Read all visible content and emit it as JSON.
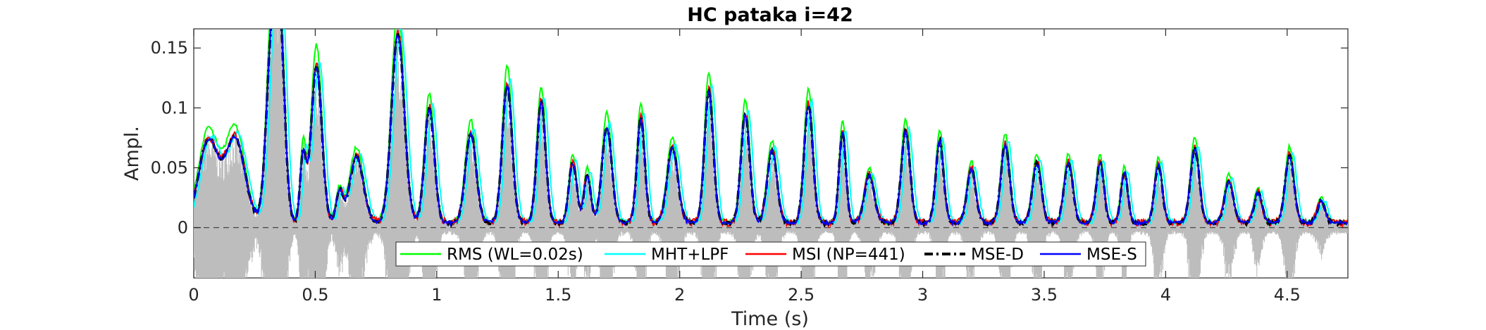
{
  "chart_data": {
    "type": "line",
    "title": "HC pataka i=42",
    "xlabel": "Time (s)",
    "ylabel": "Ampl.",
    "xlim": [
      0,
      4.75
    ],
    "ylim": [
      -0.042,
      0.166
    ],
    "xticks": [
      0,
      0.5,
      1,
      1.5,
      2,
      2.5,
      3,
      3.5,
      4,
      4.5
    ],
    "xtick_labels": [
      "0",
      "0.5",
      "1",
      "1.5",
      "2",
      "2.5",
      "3",
      "3.5",
      "4",
      "4.5"
    ],
    "yticks": [
      0,
      0.05,
      0.1,
      0.15
    ],
    "ytick_labels": [
      "0",
      "0.05",
      "0.1",
      "0.15"
    ],
    "grid": false,
    "zero_line": "dashed",
    "legend_position": "bottom-center",
    "background_signal_color": "#bdbdbd",
    "peaks": [
      [
        0.06,
        0.068,
        0.04
      ],
      [
        0.17,
        0.07,
        0.04
      ],
      [
        0.32,
        0.14,
        0.022
      ],
      [
        0.355,
        0.145,
        0.02
      ],
      [
        0.45,
        0.056,
        0.012
      ],
      [
        0.505,
        0.13,
        0.022
      ],
      [
        0.6,
        0.025,
        0.014
      ],
      [
        0.67,
        0.055,
        0.028
      ],
      [
        0.84,
        0.157,
        0.026
      ],
      [
        0.97,
        0.095,
        0.02
      ],
      [
        1.14,
        0.075,
        0.022
      ],
      [
        1.29,
        0.115,
        0.02
      ],
      [
        1.43,
        0.1,
        0.018
      ],
      [
        1.56,
        0.05,
        0.016
      ],
      [
        1.62,
        0.04,
        0.014
      ],
      [
        1.7,
        0.08,
        0.02
      ],
      [
        1.84,
        0.087,
        0.016
      ],
      [
        1.97,
        0.062,
        0.022
      ],
      [
        2.12,
        0.11,
        0.018
      ],
      [
        2.27,
        0.09,
        0.018
      ],
      [
        2.38,
        0.06,
        0.02
      ],
      [
        2.53,
        0.098,
        0.018
      ],
      [
        2.67,
        0.075,
        0.014
      ],
      [
        2.78,
        0.04,
        0.02
      ],
      [
        2.93,
        0.076,
        0.018
      ],
      [
        3.07,
        0.068,
        0.016
      ],
      [
        3.2,
        0.045,
        0.018
      ],
      [
        3.34,
        0.065,
        0.018
      ],
      [
        3.47,
        0.05,
        0.018
      ],
      [
        3.6,
        0.05,
        0.018
      ],
      [
        3.73,
        0.05,
        0.016
      ],
      [
        3.83,
        0.042,
        0.014
      ],
      [
        3.97,
        0.048,
        0.016
      ],
      [
        4.12,
        0.062,
        0.018
      ],
      [
        4.26,
        0.035,
        0.018
      ],
      [
        4.38,
        0.025,
        0.016
      ],
      [
        4.51,
        0.056,
        0.018
      ],
      [
        4.64,
        0.018,
        0.016
      ]
    ],
    "series": [
      {
        "name": "RMS (WL=0.02s)",
        "color": "#00ff00",
        "style": "solid",
        "scale": 1.14,
        "shift": 0.0
      },
      {
        "name": "MHT+LPF",
        "color": "#00ffff",
        "style": "solid",
        "scale": 1.04,
        "shift": 0.012
      },
      {
        "name": "MSI (NP=441)",
        "color": "#ff0000",
        "style": "solid",
        "scale": 1.02,
        "shift": 0.0
      },
      {
        "name": "MSE-D",
        "color": "#000000",
        "style": "dash-dot",
        "scale": 1.0,
        "shift": 0.0
      },
      {
        "name": "MSE-S",
        "color": "#0000ff",
        "style": "solid",
        "scale": 1.0,
        "shift": 0.0
      }
    ]
  }
}
